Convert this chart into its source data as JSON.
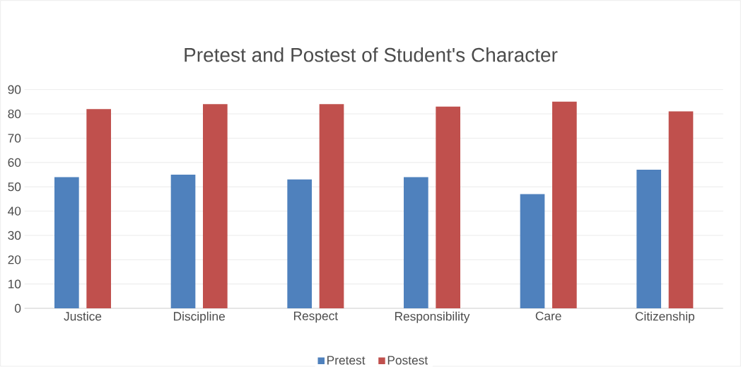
{
  "chart_data": {
    "type": "bar",
    "title": "Pretest and Postest of Student's Character",
    "categories": [
      "Justice",
      "Discipline",
      "Respect",
      "Responsibility",
      "Care",
      "Citizenship"
    ],
    "series": [
      {
        "name": "Pretest",
        "color": "#4f81bd",
        "values": [
          54,
          55,
          53,
          54,
          47,
          57
        ]
      },
      {
        "name": "Postest",
        "color": "#c0504d",
        "values": [
          82,
          84,
          84,
          83,
          85,
          81
        ]
      }
    ],
    "ylim": [
      0,
      90
    ],
    "yticks": [
      0,
      10,
      20,
      30,
      40,
      50,
      60,
      70,
      80,
      90
    ],
    "grid": "y",
    "legend": "bottom"
  }
}
